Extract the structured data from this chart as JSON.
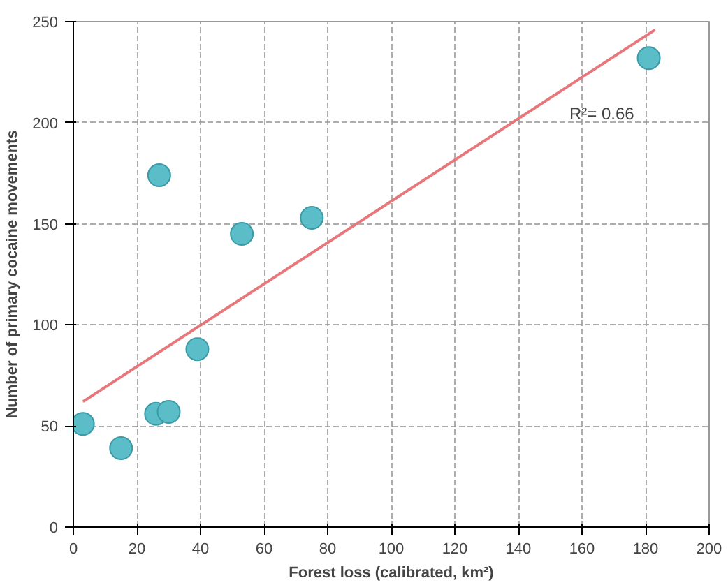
{
  "chart_data": {
    "type": "scatter",
    "xlabel": "Forest loss (calibrated, km²)",
    "ylabel": "Number of primary cocaine movements",
    "xlim": [
      0,
      200
    ],
    "ylim": [
      0,
      250
    ],
    "xticks": [
      0,
      20,
      40,
      60,
      80,
      100,
      120,
      140,
      160,
      180,
      200
    ],
    "yticks": [
      0,
      50,
      100,
      150,
      200,
      250
    ],
    "grid": true,
    "series": [
      {
        "marker": "circle",
        "color": "#5bbdc8",
        "x": [
          3,
          15,
          27,
          26,
          30,
          39,
          53,
          75,
          181
        ],
        "values": [
          51,
          39,
          174,
          56,
          57,
          88,
          145,
          153,
          232
        ]
      },
      {
        "type": "line",
        "color": "#e8777b",
        "x": [
          3,
          183
        ],
        "values": [
          62,
          246
        ]
      }
    ],
    "annotations": [
      "R²= 0.66"
    ]
  }
}
